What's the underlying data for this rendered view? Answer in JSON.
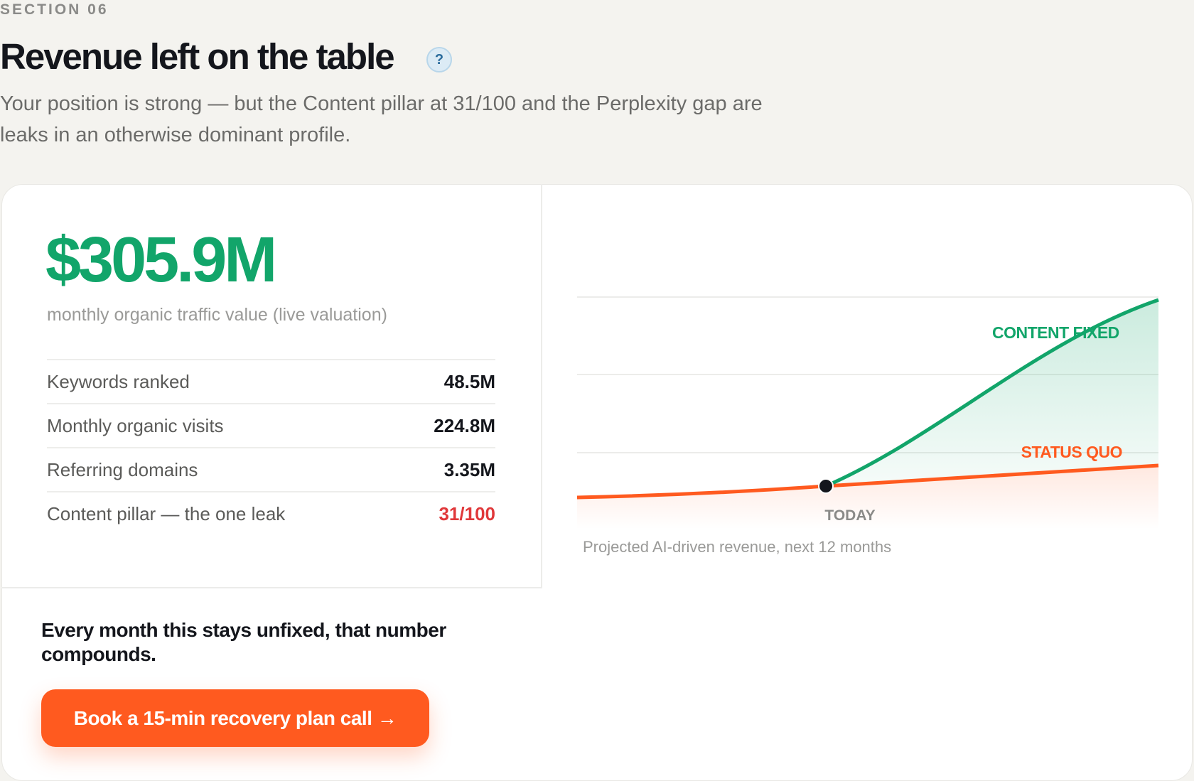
{
  "section_label": "SECTION 06",
  "header": {
    "title": "Revenue left on the table",
    "help_icon": "?",
    "subtitle": "Your position is strong — but the Content pillar at 31/100 and the Perplexity gap are leaks in an otherwise dominant profile."
  },
  "card": {
    "headline_value": "$305.9M",
    "headline_caption": "monthly organic traffic value (live valuation)",
    "stats": [
      {
        "label": "Keywords ranked",
        "value": "48.5M"
      },
      {
        "label": "Monthly organic visits",
        "value": "224.8M"
      },
      {
        "label": "Referring domains",
        "value": "3.35M"
      },
      {
        "label": "Content pillar — the one leak",
        "value": "31/100"
      }
    ],
    "chart": {
      "series_labels": [
        "CONTENT FIXED",
        "STATUS QUO"
      ],
      "marker_label": "TODAY",
      "caption": "Projected AI-driven revenue, next 12 months"
    },
    "cta_text": "Every month this stays unfixed, that number compounds.",
    "cta_button": "Book a 15-min recovery plan call →"
  }
}
